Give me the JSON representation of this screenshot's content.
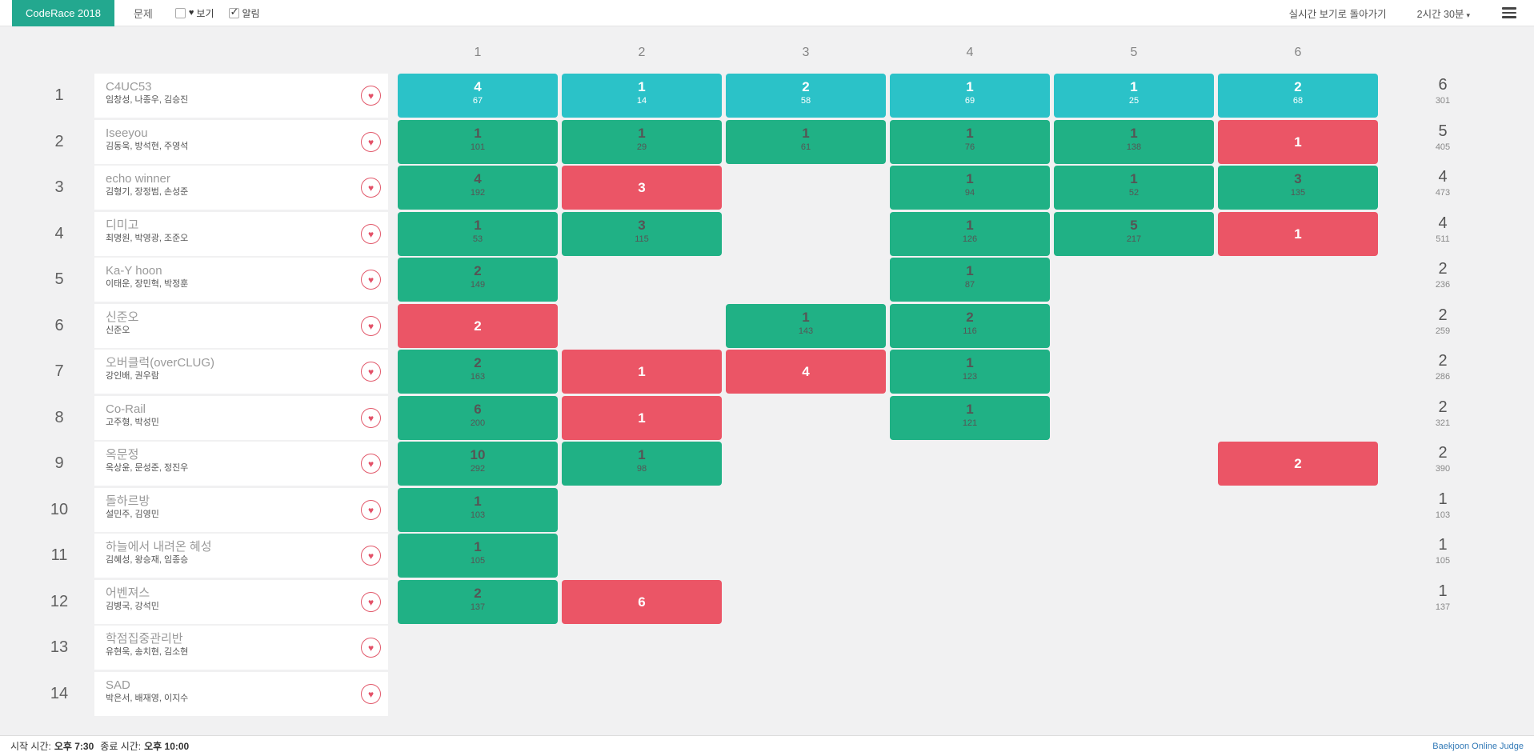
{
  "navbar": {
    "brand": "CodeRace 2018",
    "menu_problems": "문제",
    "toggle_hearts": {
      "label": "보기",
      "checked": false
    },
    "toggle_notifications": {
      "label": "알림",
      "checked": true
    },
    "back_to_live": "실시간 보기로 돌아가기",
    "timer": "2시간 30분"
  },
  "icons": {
    "heart": "♥",
    "check": "✓",
    "caret": "▾"
  },
  "colors": {
    "brand": "#23A88F",
    "cell-first": "#2BC2C8",
    "cell-solved": "#20B185",
    "cell-failed": "#EB5566",
    "page-bg": "#F1F1F2",
    "link-blue": "#337AB7"
  },
  "scoreboard": {
    "columns": [
      "1",
      "2",
      "3",
      "4",
      "5",
      "6"
    ],
    "teams": [
      {
        "rank": "1",
        "name": "C4UC53",
        "members": "임창성, 나종우, 김승진",
        "solved": "6",
        "penalty": "301",
        "cells": [
          {
            "attempts": "4",
            "time": "67",
            "status": "first"
          },
          {
            "attempts": "1",
            "time": "14",
            "status": "first"
          },
          {
            "attempts": "2",
            "time": "58",
            "status": "first"
          },
          {
            "attempts": "1",
            "time": "69",
            "status": "first"
          },
          {
            "attempts": "1",
            "time": "25",
            "status": "first"
          },
          {
            "attempts": "2",
            "time": "68",
            "status": "first"
          }
        ]
      },
      {
        "rank": "2",
        "name": "Iseeyou",
        "members": "김동욱, 방석현, 주영석",
        "solved": "5",
        "penalty": "405",
        "cells": [
          {
            "attempts": "1",
            "time": "101",
            "status": "solved"
          },
          {
            "attempts": "1",
            "time": "29",
            "status": "solved"
          },
          {
            "attempts": "1",
            "time": "61",
            "status": "solved"
          },
          {
            "attempts": "1",
            "time": "76",
            "status": "solved"
          },
          {
            "attempts": "1",
            "time": "138",
            "status": "solved"
          },
          {
            "attempts": "1",
            "time": "",
            "status": "failed"
          }
        ]
      },
      {
        "rank": "3",
        "name": "echo winner",
        "members": "김형기, 장정범, 손성준",
        "solved": "4",
        "penalty": "473",
        "cells": [
          {
            "attempts": "4",
            "time": "192",
            "status": "solved"
          },
          {
            "attempts": "3",
            "time": "",
            "status": "failed"
          },
          {
            "status": "empty"
          },
          {
            "attempts": "1",
            "time": "94",
            "status": "solved"
          },
          {
            "attempts": "1",
            "time": "52",
            "status": "solved"
          },
          {
            "attempts": "3",
            "time": "135",
            "status": "solved"
          }
        ]
      },
      {
        "rank": "4",
        "name": "디미고",
        "members": "최명원, 박영광, 조준오",
        "solved": "4",
        "penalty": "511",
        "cells": [
          {
            "attempts": "1",
            "time": "53",
            "status": "solved"
          },
          {
            "attempts": "3",
            "time": "115",
            "status": "solved"
          },
          {
            "status": "empty"
          },
          {
            "attempts": "1",
            "time": "126",
            "status": "solved"
          },
          {
            "attempts": "5",
            "time": "217",
            "status": "solved"
          },
          {
            "attempts": "1",
            "time": "",
            "status": "failed"
          }
        ]
      },
      {
        "rank": "5",
        "name": "Ka-Y hoon",
        "members": "이태운, 장민혁, 박정훈",
        "solved": "2",
        "penalty": "236",
        "cells": [
          {
            "attempts": "2",
            "time": "149",
            "status": "solved"
          },
          {
            "status": "empty"
          },
          {
            "status": "empty"
          },
          {
            "attempts": "1",
            "time": "87",
            "status": "solved"
          },
          {
            "status": "empty"
          },
          {
            "status": "empty"
          }
        ]
      },
      {
        "rank": "6",
        "name": "신준오",
        "members": "신준오",
        "solved": "2",
        "penalty": "259",
        "cells": [
          {
            "attempts": "2",
            "time": "",
            "status": "failed"
          },
          {
            "status": "empty"
          },
          {
            "attempts": "1",
            "time": "143",
            "status": "solved"
          },
          {
            "attempts": "2",
            "time": "116",
            "status": "solved"
          },
          {
            "status": "empty"
          },
          {
            "status": "empty"
          }
        ]
      },
      {
        "rank": "7",
        "name": "오버클럭(overCLUG)",
        "members": "강인배, 권우람",
        "solved": "2",
        "penalty": "286",
        "cells": [
          {
            "attempts": "2",
            "time": "163",
            "status": "solved"
          },
          {
            "attempts": "1",
            "time": "",
            "status": "failed"
          },
          {
            "attempts": "4",
            "time": "",
            "status": "failed"
          },
          {
            "attempts": "1",
            "time": "123",
            "status": "solved"
          },
          {
            "status": "empty"
          },
          {
            "status": "empty"
          }
        ]
      },
      {
        "rank": "8",
        "name": "Co-Rail",
        "members": "고주형, 박성민",
        "solved": "2",
        "penalty": "321",
        "cells": [
          {
            "attempts": "6",
            "time": "200",
            "status": "solved"
          },
          {
            "attempts": "1",
            "time": "",
            "status": "failed"
          },
          {
            "status": "empty"
          },
          {
            "attempts": "1",
            "time": "121",
            "status": "solved"
          },
          {
            "status": "empty"
          },
          {
            "status": "empty"
          }
        ]
      },
      {
        "rank": "9",
        "name": "옥문정",
        "members": "옥상윤, 문성준, 정진우",
        "solved": "2",
        "penalty": "390",
        "cells": [
          {
            "attempts": "10",
            "time": "292",
            "status": "solved"
          },
          {
            "attempts": "1",
            "time": "98",
            "status": "solved"
          },
          {
            "status": "empty"
          },
          {
            "status": "empty"
          },
          {
            "status": "empty"
          },
          {
            "attempts": "2",
            "time": "",
            "status": "failed"
          }
        ]
      },
      {
        "rank": "10",
        "name": "돌하르방",
        "members": "설민주, 김영민",
        "solved": "1",
        "penalty": "103",
        "cells": [
          {
            "attempts": "1",
            "time": "103",
            "status": "solved"
          },
          {
            "status": "empty"
          },
          {
            "status": "empty"
          },
          {
            "status": "empty"
          },
          {
            "status": "empty"
          },
          {
            "status": "empty"
          }
        ]
      },
      {
        "rank": "11",
        "name": "하늘에서 내려온 혜성",
        "members": "김혜성, 왕승재, 임종승",
        "solved": "1",
        "penalty": "105",
        "cells": [
          {
            "attempts": "1",
            "time": "105",
            "status": "solved"
          },
          {
            "status": "empty"
          },
          {
            "status": "empty"
          },
          {
            "status": "empty"
          },
          {
            "status": "empty"
          },
          {
            "status": "empty"
          }
        ]
      },
      {
        "rank": "12",
        "name": "어벤져스",
        "members": "김병국, 강석민",
        "solved": "1",
        "penalty": "137",
        "cells": [
          {
            "attempts": "2",
            "time": "137",
            "status": "solved"
          },
          {
            "attempts": "6",
            "time": "",
            "status": "failed"
          },
          {
            "status": "empty"
          },
          {
            "status": "empty"
          },
          {
            "status": "empty"
          },
          {
            "status": "empty"
          }
        ]
      },
      {
        "rank": "13",
        "name": "학점집중관리반",
        "members": "유현욱, 송치현, 김소현",
        "solved": "",
        "penalty": "",
        "cells": [
          {
            "status": "empty"
          },
          {
            "status": "empty"
          },
          {
            "status": "empty"
          },
          {
            "status": "empty"
          },
          {
            "status": "empty"
          },
          {
            "status": "empty"
          }
        ]
      },
      {
        "rank": "14",
        "name": "SAD",
        "members": "박은서, 배재영, 이지수",
        "solved": "",
        "penalty": "",
        "cells": [
          {
            "status": "empty"
          },
          {
            "status": "empty"
          },
          {
            "status": "empty"
          },
          {
            "status": "empty"
          },
          {
            "status": "empty"
          },
          {
            "status": "empty"
          }
        ]
      }
    ]
  },
  "footer": {
    "start_label": "시작 시간:",
    "start_time": "오후 7:30",
    "end_label": "종료 시간:",
    "end_time": "오후 10:00",
    "judge_link": "Baekjoon Online Judge"
  }
}
